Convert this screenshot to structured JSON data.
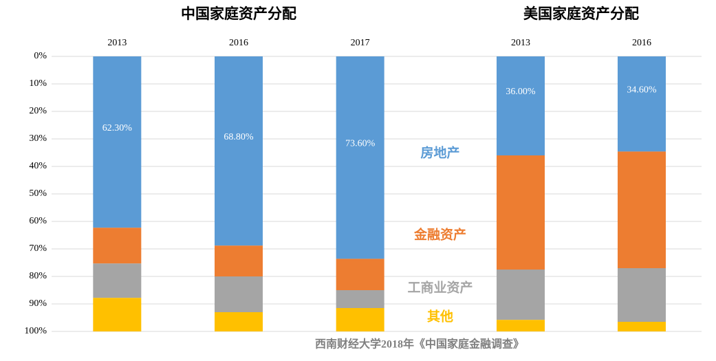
{
  "chart_data": [
    {
      "type": "stacked_bar",
      "title": "中国家庭资产分配",
      "categories": [
        "2013",
        "2016",
        "2017"
      ],
      "series": [
        {
          "name": "房地产",
          "color": "#5b9bd5",
          "values": [
            62.3,
            68.8,
            73.6
          ],
          "value_labels": [
            "62.30%",
            "68.80%",
            "73.60%"
          ]
        },
        {
          "name": "金融资产",
          "color": "#ed7d31",
          "values": [
            13,
            11.2,
            11.4
          ]
        },
        {
          "name": "工商业资产",
          "color": "#a5a5a5",
          "values": [
            12.5,
            13,
            6.5
          ]
        },
        {
          "name": "其他",
          "color": "#ffc000",
          "values": [
            12.2,
            7,
            8.5
          ]
        }
      ],
      "ylim": [
        0,
        100
      ],
      "y_inverted": true,
      "grid": true,
      "yticks": [
        {
          "value": 0,
          "label": "0%"
        },
        {
          "value": 10,
          "label": "10%"
        },
        {
          "value": 20,
          "label": "20%"
        },
        {
          "value": 30,
          "label": "30%"
        },
        {
          "value": 40,
          "label": "40%"
        },
        {
          "value": 50,
          "label": "50%"
        },
        {
          "value": 60,
          "label": "60%"
        },
        {
          "value": 70,
          "label": "70%"
        },
        {
          "value": 80,
          "label": "80%"
        },
        {
          "value": 90,
          "label": "90%"
        },
        {
          "value": 100,
          "label": "100%"
        }
      ]
    },
    {
      "type": "stacked_bar",
      "title": "美国家庭资产分配",
      "categories": [
        "2013",
        "2016"
      ],
      "series": [
        {
          "color": "#5b9bd5",
          "values": [
            36,
            34.6
          ],
          "value_labels": [
            "36.00%",
            "34.60%"
          ]
        },
        {
          "color": "#ed7d31",
          "values": [
            41.5,
            42.4
          ]
        },
        {
          "color": "#a5a5a5",
          "values": [
            18.3,
            19.5
          ]
        },
        {
          "color": "#ffc000",
          "values": [
            4.2,
            3.5
          ]
        }
      ],
      "ylim": [
        0,
        100
      ],
      "y_inverted": true
    }
  ],
  "source": "西南财经大学2018年《中国家庭金融调查》"
}
